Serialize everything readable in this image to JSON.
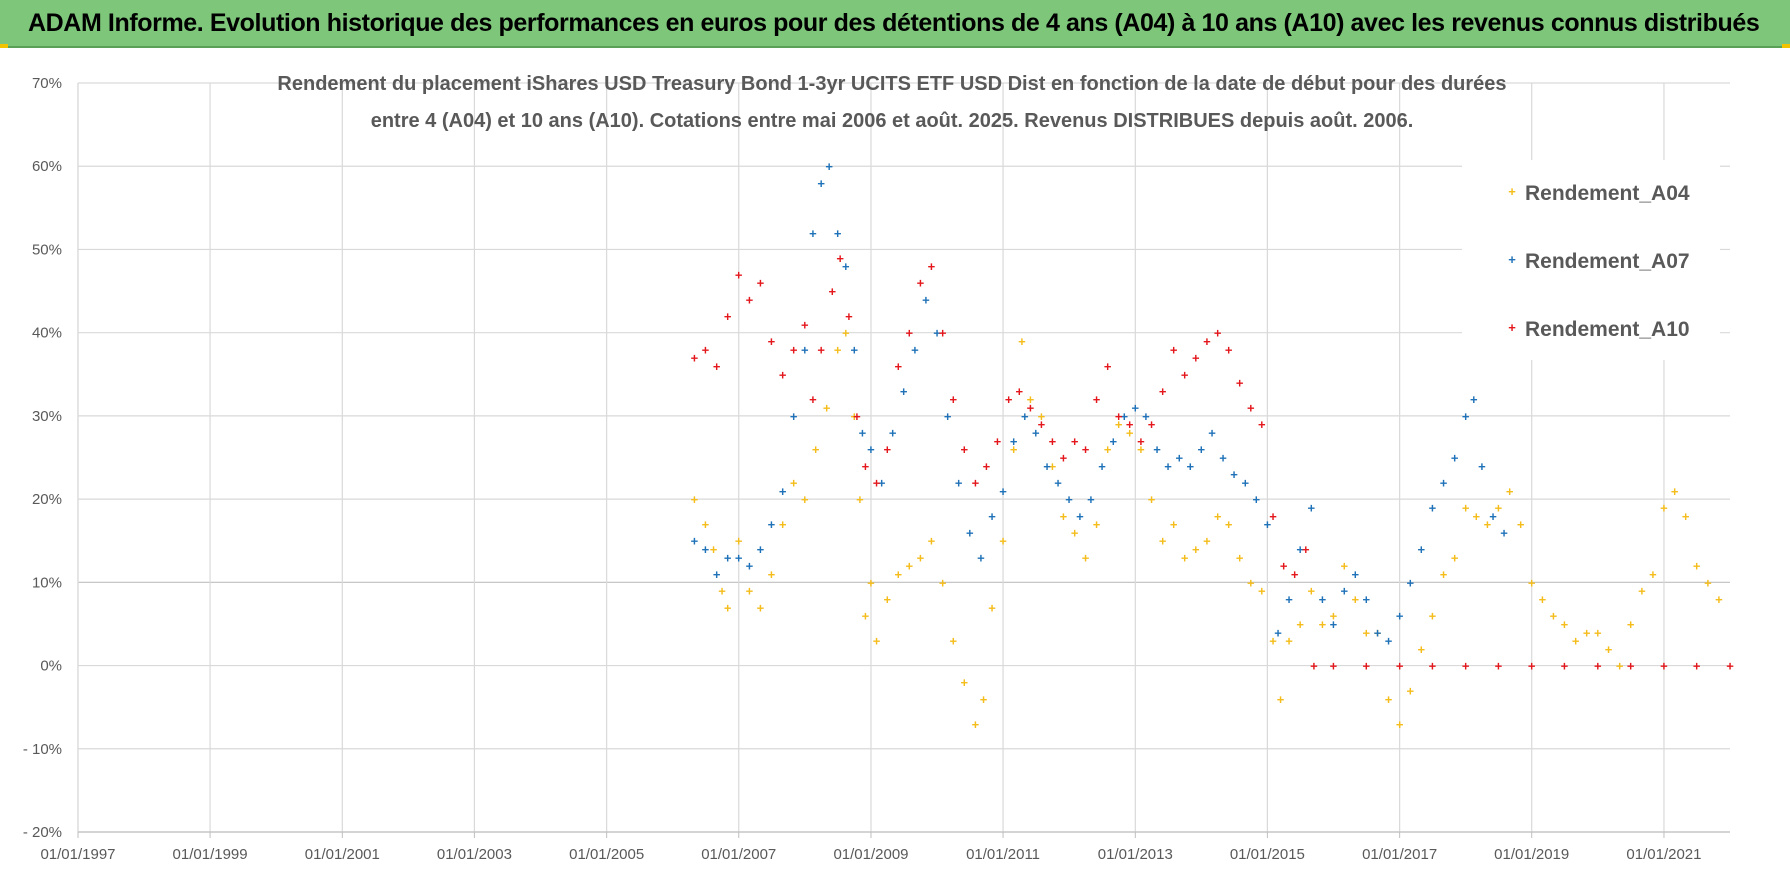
{
  "banner": {
    "title": "ADAM Informe. Evolution historique des performances en euros pour des détentions de 4 ans (A04) à 10 ans (A10) avec les revenus connus distribués"
  },
  "chart_data": {
    "type": "scatter",
    "title_line1": "Rendement du placement iShares USD Treasury Bond 1-3yr UCITS ETF USD Dist en fonction de la date de début pour des durées",
    "title_line2": "entre 4 (A04) et 10 ans (A10).  Cotations entre mai 2006 et août. 2025. Revenus DISTRIBUES depuis août. 2006.",
    "xlim": [
      "1997-01-01",
      "2022-01-01"
    ],
    "ylim": [
      -20,
      70
    ],
    "x_ticks": [
      "01/01/1997",
      "01/01/1999",
      "01/01/2001",
      "01/01/2003",
      "01/01/2005",
      "01/01/2007",
      "01/01/2009",
      "01/01/2011",
      "01/01/2013",
      "01/01/2015",
      "01/01/2017",
      "01/01/2019",
      "01/01/2021"
    ],
    "y_ticks": [
      "70%",
      "60%",
      "50%",
      "40%",
      "30%",
      "20%",
      "10%",
      "0%",
      "- 10%",
      "- 20%"
    ],
    "grid": true,
    "legend_position": "right",
    "series": [
      {
        "name": "Rendement_A04",
        "color": "#f4bd1c",
        "marker": "+",
        "points": [
          [
            "2006-05-01",
            20
          ],
          [
            "2006-07-01",
            17
          ],
          [
            "2006-08-15",
            14
          ],
          [
            "2006-10-01",
            9
          ],
          [
            "2006-11-01",
            7
          ],
          [
            "2007-01-01",
            15
          ],
          [
            "2007-03-01",
            9
          ],
          [
            "2007-05-01",
            7
          ],
          [
            "2007-07-01",
            11
          ],
          [
            "2007-09-01",
            17
          ],
          [
            "2007-11-01",
            22
          ],
          [
            "2008-01-01",
            20
          ],
          [
            "2008-03-01",
            26
          ],
          [
            "2008-05-01",
            31
          ],
          [
            "2008-07-01",
            38
          ],
          [
            "2008-08-15",
            40
          ],
          [
            "2008-10-01",
            30
          ],
          [
            "2008-11-01",
            20
          ],
          [
            "2008-12-01",
            6
          ],
          [
            "2009-01-01",
            10
          ],
          [
            "2009-02-01",
            3
          ],
          [
            "2009-04-01",
            8
          ],
          [
            "2009-06-01",
            11
          ],
          [
            "2009-08-01",
            12
          ],
          [
            "2009-10-01",
            13
          ],
          [
            "2009-12-01",
            15
          ],
          [
            "2010-02-01",
            10
          ],
          [
            "2010-04-01",
            3
          ],
          [
            "2010-06-01",
            -2
          ],
          [
            "2010-08-01",
            -7
          ],
          [
            "2010-09-15",
            -4
          ],
          [
            "2010-11-01",
            7
          ],
          [
            "2011-01-01",
            15
          ],
          [
            "2011-03-01",
            26
          ],
          [
            "2011-04-15",
            39
          ],
          [
            "2011-06-01",
            32
          ],
          [
            "2011-08-01",
            30
          ],
          [
            "2011-10-01",
            24
          ],
          [
            "2011-12-01",
            18
          ],
          [
            "2012-02-01",
            16
          ],
          [
            "2012-04-01",
            13
          ],
          [
            "2012-06-01",
            17
          ],
          [
            "2012-08-01",
            26
          ],
          [
            "2012-10-01",
            29
          ],
          [
            "2012-12-01",
            28
          ],
          [
            "2013-02-01",
            26
          ],
          [
            "2013-04-01",
            20
          ],
          [
            "2013-06-01",
            15
          ],
          [
            "2013-08-01",
            17
          ],
          [
            "2013-10-01",
            13
          ],
          [
            "2013-12-01",
            14
          ],
          [
            "2014-02-01",
            15
          ],
          [
            "2014-04-01",
            18
          ],
          [
            "2014-06-01",
            17
          ],
          [
            "2014-08-01",
            13
          ],
          [
            "2014-10-01",
            10
          ],
          [
            "2014-12-01",
            9
          ],
          [
            "2015-02-01",
            3
          ],
          [
            "2015-03-15",
            -4
          ],
          [
            "2015-05-01",
            3
          ],
          [
            "2015-07-01",
            5
          ],
          [
            "2015-09-01",
            9
          ],
          [
            "2015-11-01",
            5
          ],
          [
            "2016-01-01",
            6
          ],
          [
            "2016-03-01",
            12
          ],
          [
            "2016-05-01",
            8
          ],
          [
            "2016-07-01",
            4
          ],
          [
            "2016-09-01",
            4
          ],
          [
            "2016-11-01",
            -4
          ],
          [
            "2017-01-01",
            -7
          ],
          [
            "2017-03-01",
            -3
          ],
          [
            "2017-05-01",
            2
          ],
          [
            "2017-07-01",
            6
          ],
          [
            "2017-09-01",
            11
          ],
          [
            "2017-11-01",
            13
          ],
          [
            "2018-01-01",
            19
          ],
          [
            "2018-03-01",
            18
          ],
          [
            "2018-05-01",
            17
          ],
          [
            "2018-07-01",
            19
          ],
          [
            "2018-09-01",
            21
          ],
          [
            "2018-11-01",
            17
          ],
          [
            "2019-01-01",
            10
          ],
          [
            "2019-03-01",
            8
          ],
          [
            "2019-05-01",
            6
          ],
          [
            "2019-07-01",
            5
          ],
          [
            "2019-09-01",
            3
          ],
          [
            "2019-11-01",
            4
          ],
          [
            "2020-01-01",
            4
          ],
          [
            "2020-03-01",
            2
          ],
          [
            "2020-05-01",
            0
          ],
          [
            "2020-07-01",
            5
          ],
          [
            "2020-09-01",
            9
          ],
          [
            "2020-11-01",
            11
          ],
          [
            "2021-01-01",
            19
          ],
          [
            "2021-03-01",
            21
          ],
          [
            "2021-05-01",
            18
          ],
          [
            "2021-07-01",
            12
          ],
          [
            "2021-09-01",
            10
          ],
          [
            "2021-11-01",
            8
          ]
        ]
      },
      {
        "name": "Rendement_A07",
        "color": "#1f72b8",
        "marker": "+",
        "points": [
          [
            "2006-05-01",
            15
          ],
          [
            "2006-07-01",
            14
          ],
          [
            "2006-09-01",
            11
          ],
          [
            "2006-11-01",
            13
          ],
          [
            "2007-01-01",
            13
          ],
          [
            "2007-03-01",
            12
          ],
          [
            "2007-05-01",
            14
          ],
          [
            "2007-07-01",
            17
          ],
          [
            "2007-09-01",
            21
          ],
          [
            "2007-11-01",
            30
          ],
          [
            "2008-01-01",
            38
          ],
          [
            "2008-02-15",
            52
          ],
          [
            "2008-04-01",
            58
          ],
          [
            "2008-05-15",
            60
          ],
          [
            "2008-07-01",
            52
          ],
          [
            "2008-08-15",
            48
          ],
          [
            "2008-10-01",
            38
          ],
          [
            "2008-11-15",
            28
          ],
          [
            "2009-01-01",
            26
          ],
          [
            "2009-03-01",
            22
          ],
          [
            "2009-05-01",
            28
          ],
          [
            "2009-07-01",
            33
          ],
          [
            "2009-09-01",
            38
          ],
          [
            "2009-11-01",
            44
          ],
          [
            "2010-01-01",
            40
          ],
          [
            "2010-03-01",
            30
          ],
          [
            "2010-05-01",
            22
          ],
          [
            "2010-07-01",
            16
          ],
          [
            "2010-09-01",
            13
          ],
          [
            "2010-11-01",
            18
          ],
          [
            "2011-01-01",
            21
          ],
          [
            "2011-03-01",
            27
          ],
          [
            "2011-05-01",
            30
          ],
          [
            "2011-07-01",
            28
          ],
          [
            "2011-09-01",
            24
          ],
          [
            "2011-11-01",
            22
          ],
          [
            "2012-01-01",
            20
          ],
          [
            "2012-03-01",
            18
          ],
          [
            "2012-05-01",
            20
          ],
          [
            "2012-07-01",
            24
          ],
          [
            "2012-09-01",
            27
          ],
          [
            "2012-11-01",
            30
          ],
          [
            "2013-01-01",
            31
          ],
          [
            "2013-03-01",
            30
          ],
          [
            "2013-05-01",
            26
          ],
          [
            "2013-07-01",
            24
          ],
          [
            "2013-09-01",
            25
          ],
          [
            "2013-11-01",
            24
          ],
          [
            "2014-01-01",
            26
          ],
          [
            "2014-03-01",
            28
          ],
          [
            "2014-05-01",
            25
          ],
          [
            "2014-07-01",
            23
          ],
          [
            "2014-09-01",
            22
          ],
          [
            "2014-11-01",
            20
          ],
          [
            "2015-01-01",
            17
          ],
          [
            "2015-03-01",
            4
          ],
          [
            "2015-05-01",
            8
          ],
          [
            "2015-07-01",
            14
          ],
          [
            "2015-09-01",
            19
          ],
          [
            "2015-11-01",
            8
          ],
          [
            "2016-01-01",
            5
          ],
          [
            "2016-03-01",
            9
          ],
          [
            "2016-05-01",
            11
          ],
          [
            "2016-07-01",
            8
          ],
          [
            "2016-09-01",
            4
          ],
          [
            "2016-11-01",
            3
          ],
          [
            "2017-01-01",
            6
          ],
          [
            "2017-03-01",
            10
          ],
          [
            "2017-05-01",
            14
          ],
          [
            "2017-07-01",
            19
          ],
          [
            "2017-09-01",
            22
          ],
          [
            "2017-11-01",
            25
          ],
          [
            "2018-01-01",
            30
          ],
          [
            "2018-02-15",
            32
          ],
          [
            "2018-04-01",
            24
          ],
          [
            "2018-06-01",
            18
          ],
          [
            "2018-08-01",
            16
          ]
        ]
      },
      {
        "name": "Rendement_A10",
        "color": "#e3171c",
        "marker": "+",
        "points": [
          [
            "2006-05-01",
            37
          ],
          [
            "2006-07-01",
            38
          ],
          [
            "2006-09-01",
            36
          ],
          [
            "2006-11-01",
            42
          ],
          [
            "2007-01-01",
            47
          ],
          [
            "2007-03-01",
            44
          ],
          [
            "2007-05-01",
            46
          ],
          [
            "2007-07-01",
            39
          ],
          [
            "2007-09-01",
            35
          ],
          [
            "2007-11-01",
            38
          ],
          [
            "2008-01-01",
            41
          ],
          [
            "2008-02-15",
            32
          ],
          [
            "2008-04-01",
            38
          ],
          [
            "2008-06-01",
            45
          ],
          [
            "2008-07-15",
            49
          ],
          [
            "2008-09-01",
            42
          ],
          [
            "2008-10-15",
            30
          ],
          [
            "2008-12-01",
            24
          ],
          [
            "2009-02-01",
            22
          ],
          [
            "2009-04-01",
            26
          ],
          [
            "2009-06-01",
            36
          ],
          [
            "2009-08-01",
            40
          ],
          [
            "2009-10-01",
            46
          ],
          [
            "2009-12-01",
            48
          ],
          [
            "2010-02-01",
            40
          ],
          [
            "2010-04-01",
            32
          ],
          [
            "2010-06-01",
            26
          ],
          [
            "2010-08-01",
            22
          ],
          [
            "2010-10-01",
            24
          ],
          [
            "2010-12-01",
            27
          ],
          [
            "2011-02-01",
            32
          ],
          [
            "2011-04-01",
            33
          ],
          [
            "2011-06-01",
            31
          ],
          [
            "2011-08-01",
            29
          ],
          [
            "2011-10-01",
            27
          ],
          [
            "2011-12-01",
            25
          ],
          [
            "2012-02-01",
            27
          ],
          [
            "2012-04-01",
            26
          ],
          [
            "2012-06-01",
            32
          ],
          [
            "2012-08-01",
            36
          ],
          [
            "2012-10-01",
            30
          ],
          [
            "2012-12-01",
            29
          ],
          [
            "2013-02-01",
            27
          ],
          [
            "2013-04-01",
            29
          ],
          [
            "2013-06-01",
            33
          ],
          [
            "2013-08-01",
            38
          ],
          [
            "2013-10-01",
            35
          ],
          [
            "2013-12-01",
            37
          ],
          [
            "2014-02-01",
            39
          ],
          [
            "2014-04-01",
            40
          ],
          [
            "2014-06-01",
            38
          ],
          [
            "2014-08-01",
            34
          ],
          [
            "2014-10-01",
            31
          ],
          [
            "2014-12-01",
            29
          ],
          [
            "2015-02-01",
            18
          ],
          [
            "2015-04-01",
            12
          ],
          [
            "2015-06-01",
            11
          ],
          [
            "2015-08-01",
            14
          ],
          [
            "2015-09-15",
            0
          ],
          [
            "2016-01-01",
            0
          ],
          [
            "2016-07-01",
            0
          ],
          [
            "2017-01-01",
            0
          ],
          [
            "2017-07-01",
            0
          ],
          [
            "2018-01-01",
            0
          ],
          [
            "2018-07-01",
            0
          ],
          [
            "2019-01-01",
            0
          ],
          [
            "2019-07-01",
            0
          ],
          [
            "2020-01-01",
            0
          ],
          [
            "2020-07-01",
            0
          ],
          [
            "2021-01-01",
            0
          ],
          [
            "2021-07-01",
            0
          ],
          [
            "2022-01-01",
            0
          ]
        ]
      }
    ]
  }
}
